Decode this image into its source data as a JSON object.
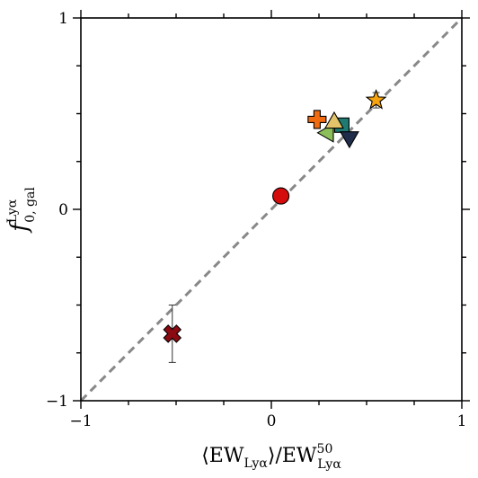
{
  "chart_data": {
    "type": "scatter",
    "title": "",
    "xlabel": {
      "open": "⟨EW",
      "open_sub": "Lyα",
      "mid": "⟩/EW",
      "sup": "50",
      "sub": "Lyα"
    },
    "ylabel": {
      "base": "f",
      "sup": "Lyα",
      "sub": "0, gal"
    },
    "xlim": [
      -1,
      1
    ],
    "ylim": [
      -1,
      1
    ],
    "x_ticks": [
      -1,
      0,
      1
    ],
    "y_ticks": [
      -1,
      0,
      1
    ],
    "x_tick_labels": [
      "−1",
      "0",
      "1"
    ],
    "y_tick_labels": [
      "−1",
      "0",
      "1"
    ],
    "minor_tick_step": 0.25,
    "grid": false,
    "identity_line": {
      "from": [
        -1,
        -1
      ],
      "to": [
        1,
        1
      ],
      "color": "#888888",
      "style": "dashed"
    },
    "points": [
      {
        "marker": "x",
        "x": -0.52,
        "y": -0.65,
        "yerr": 0.15,
        "color": "#8b0a12"
      },
      {
        "marker": "circle",
        "x": 0.05,
        "y": 0.07,
        "color": "#d40c0c"
      },
      {
        "marker": "plus",
        "x": 0.24,
        "y": 0.47,
        "color": "#f06a10"
      },
      {
        "marker": "triangle-left",
        "x": 0.29,
        "y": 0.4,
        "color": "#8cbf5a"
      },
      {
        "marker": "square",
        "x": 0.37,
        "y": 0.44,
        "color": "#1f7a72"
      },
      {
        "marker": "triangle-up",
        "x": 0.33,
        "y": 0.46,
        "color": "#e2c36a"
      },
      {
        "marker": "triangle-down",
        "x": 0.41,
        "y": 0.37,
        "color": "#1f2c4a"
      },
      {
        "marker": "star",
        "x": 0.55,
        "y": 0.57,
        "yerr": 0.04,
        "color": "#f5a40f"
      }
    ]
  }
}
